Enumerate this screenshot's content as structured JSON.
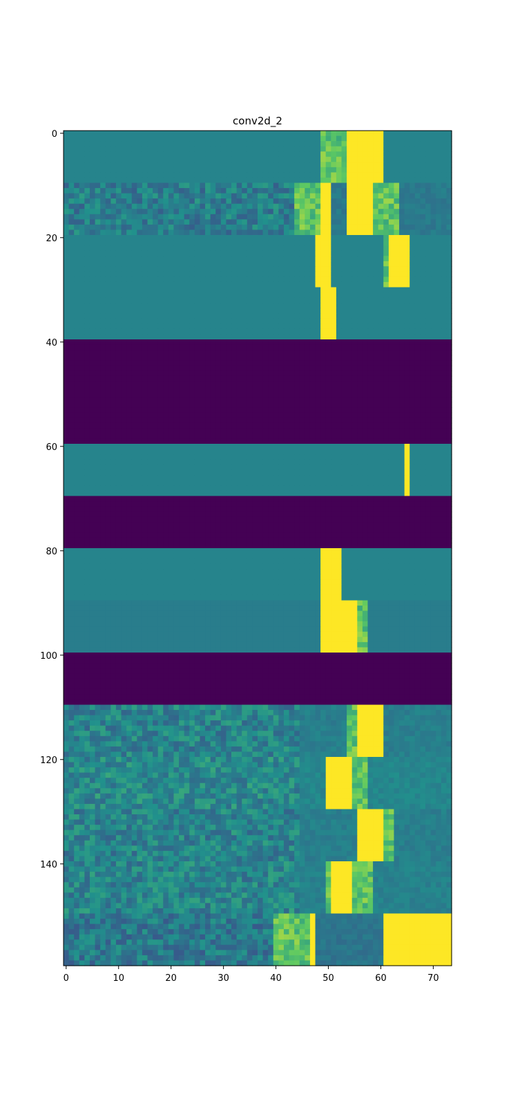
{
  "chart_data": {
    "type": "heatmap",
    "title": "conv2d_2",
    "xlabel": "",
    "ylabel": "",
    "colormap": "viridis",
    "colors": {
      "background": "#ffffff",
      "frame": "#000000",
      "band_dark": "#440154",
      "teal": "#2a788e",
      "blue": "#3b5a8f",
      "bright": "#fde725"
    },
    "x_range": [
      0,
      73
    ],
    "y_range": [
      0,
      159
    ],
    "y_inverted": true,
    "x_ticks": [
      0,
      10,
      20,
      30,
      40,
      50,
      60,
      70
    ],
    "y_ticks": [
      0,
      20,
      40,
      60,
      80,
      100,
      120,
      140
    ],
    "grid": false,
    "legend": "none",
    "bands": [
      {
        "rows": [
          0,
          9
        ],
        "base": 0.45,
        "bright": [
          [
            54,
            60
          ]
        ],
        "ramp": [
          [
            49,
            53
          ]
        ]
      },
      {
        "rows": [
          10,
          19
        ],
        "base": 0.4,
        "noisy": true,
        "bright": [
          [
            49,
            50
          ],
          [
            54,
            58
          ]
        ],
        "ramp": [
          [
            44,
            48
          ],
          [
            59,
            63
          ]
        ]
      },
      {
        "rows": [
          20,
          29
        ],
        "base": 0.45,
        "bright": [
          [
            48,
            50
          ],
          [
            62,
            65
          ]
        ],
        "ramp": [
          [
            61,
            62
          ]
        ]
      },
      {
        "rows": [
          30,
          39
        ],
        "base": 0.45,
        "bright": [
          [
            49,
            51
          ]
        ]
      },
      {
        "rows": [
          40,
          59
        ],
        "base": 0.0
      },
      {
        "rows": [
          60,
          69
        ],
        "base": 0.45,
        "bright": [
          [
            65,
            65
          ]
        ]
      },
      {
        "rows": [
          70,
          79
        ],
        "base": 0.0
      },
      {
        "rows": [
          80,
          89
        ],
        "base": 0.45,
        "bright": [
          [
            49,
            52
          ]
        ]
      },
      {
        "rows": [
          90,
          99
        ],
        "base": 0.42,
        "bright": [
          [
            49,
            55
          ]
        ],
        "ramp": [
          [
            56,
            57
          ]
        ]
      },
      {
        "rows": [
          100,
          109
        ],
        "base": 0.0
      },
      {
        "rows": [
          110,
          119
        ],
        "base": 0.42,
        "noisy": true,
        "bright": [
          [
            56,
            60
          ]
        ],
        "ramp": [
          [
            54,
            55
          ]
        ]
      },
      {
        "rows": [
          120,
          129
        ],
        "base": 0.45,
        "noisy": true,
        "bright": [
          [
            50,
            54
          ]
        ],
        "ramp": [
          [
            55,
            57
          ]
        ]
      },
      {
        "rows": [
          130,
          139
        ],
        "base": 0.42,
        "noisy": true,
        "bright": [
          [
            56,
            60
          ]
        ],
        "ramp": [
          [
            61,
            62
          ]
        ]
      },
      {
        "rows": [
          140,
          149
        ],
        "base": 0.43,
        "noisy": true,
        "bright": [
          [
            51,
            54
          ]
        ],
        "ramp": [
          [
            50,
            50
          ],
          [
            55,
            58
          ]
        ]
      },
      {
        "rows": [
          150,
          159
        ],
        "base": 0.38,
        "noisy": true,
        "bright": [
          [
            47,
            47
          ],
          [
            61,
            73
          ]
        ],
        "ramp": [
          [
            40,
            46
          ]
        ]
      }
    ]
  }
}
